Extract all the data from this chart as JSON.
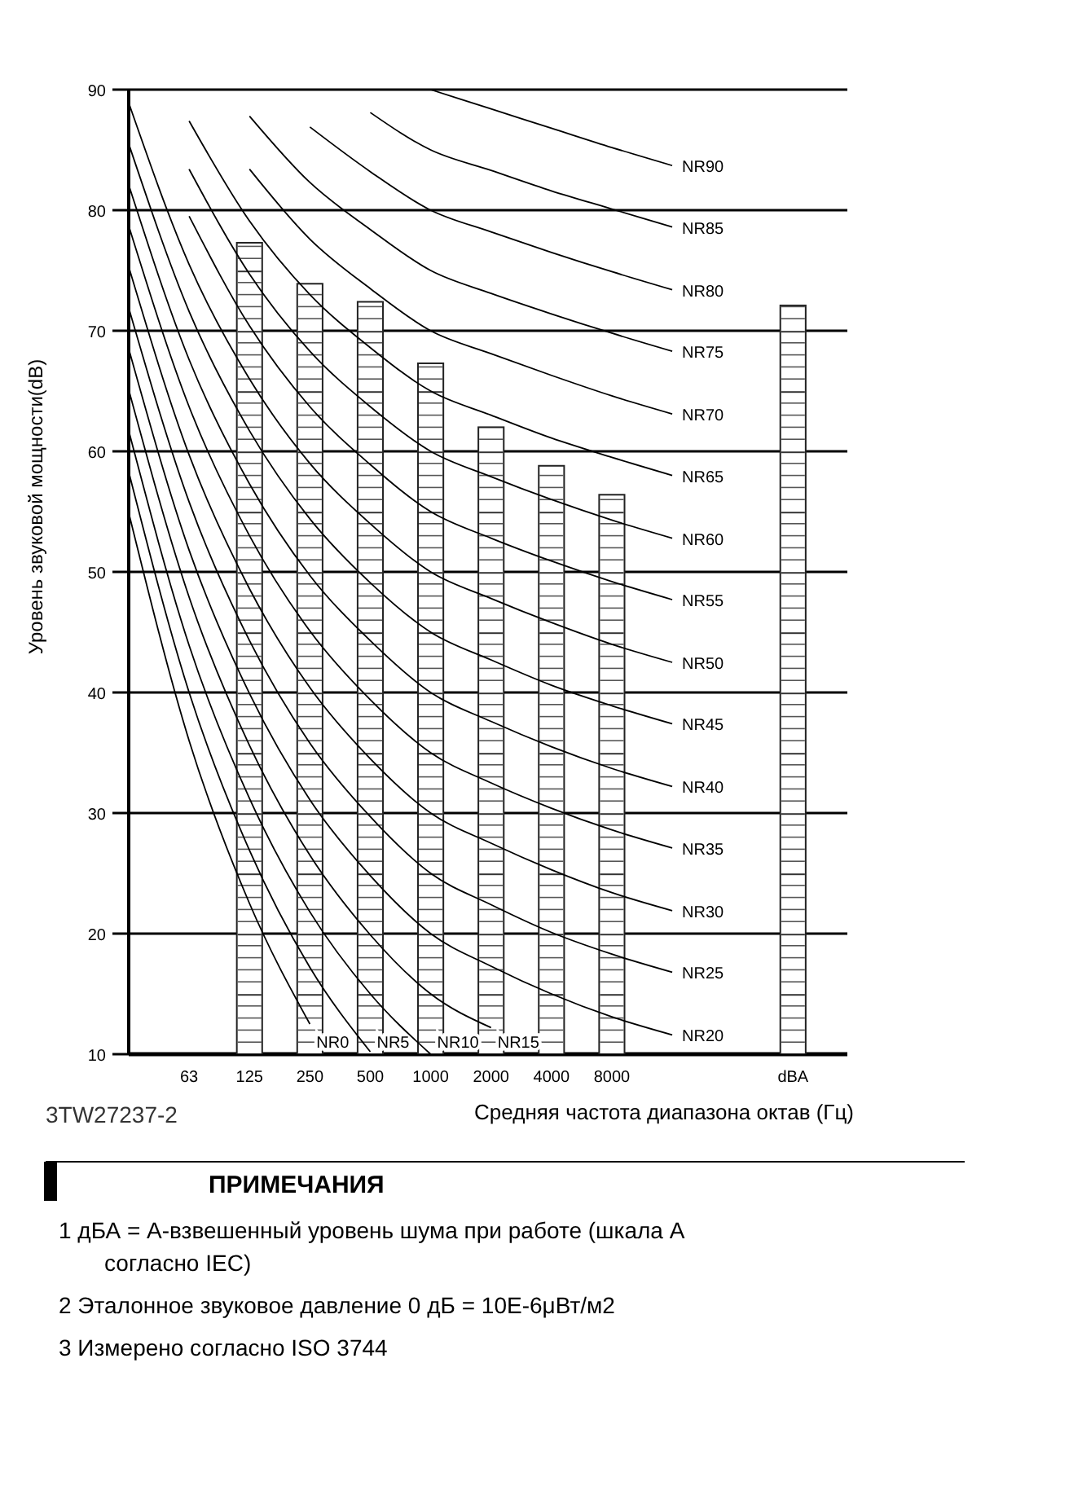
{
  "chart_data": {
    "type": "bar",
    "xlabel": "Средняя частота диапазона октав (Гц)",
    "ylabel": "Уровень звуковой мощности(dB)",
    "categories": [
      null,
      "63",
      "125",
      "250",
      "500",
      "1000",
      "2000",
      "4000",
      "8000",
      null,
      null,
      "dBA"
    ],
    "ylim": [
      10,
      90
    ],
    "yticks": [
      10,
      20,
      30,
      40,
      50,
      60,
      70,
      80,
      90
    ],
    "grid": "y",
    "legend": false,
    "marker": "none",
    "line_style": "solid",
    "series": [
      {
        "color": "#ffffff",
        "values": [
          null,
          null,
          77.3,
          73.9,
          72.4,
          67.3,
          62.0,
          58.8,
          56.4,
          null,
          null,
          72.1
        ]
      },
      {
        "type": "line",
        "name": "NR0",
        "color": "#000000",
        "values": [
          54.9,
          36.0,
          22.5,
          12.5,
          null,
          null,
          null,
          null,
          null,
          null,
          null,
          null
        ]
      },
      {
        "type": "line",
        "name": "NR5",
        "color": "#000000",
        "values": [
          58.3,
          40.0,
          26.9,
          17.2,
          10.2,
          null,
          null,
          null,
          null,
          null,
          null,
          null
        ]
      },
      {
        "type": "line",
        "name": "NR10",
        "color": "#000000",
        "values": [
          61.7,
          43.9,
          31.2,
          21.8,
          15.0,
          10.0,
          null,
          null,
          null,
          null,
          null,
          null
        ]
      },
      {
        "type": "line",
        "name": "NR15",
        "color": "#000000",
        "values": [
          65.1,
          47.9,
          35.6,
          26.5,
          19.9,
          15.0,
          12.2,
          null,
          null,
          null,
          null,
          null
        ]
      },
      {
        "type": "line",
        "name": "NR20",
        "color": "#000000",
        "values": [
          68.5,
          51.8,
          39.9,
          31.1,
          24.8,
          20.0,
          17.3,
          15.0,
          13.1,
          11.6,
          null,
          null
        ]
      },
      {
        "type": "line",
        "name": "NR25",
        "color": "#000000",
        "values": [
          71.9,
          55.8,
          44.3,
          35.8,
          29.7,
          25.0,
          22.4,
          20.1,
          18.3,
          16.8,
          null,
          null
        ]
      },
      {
        "type": "line",
        "name": "NR30",
        "color": "#000000",
        "values": [
          75.3,
          59.7,
          48.6,
          40.4,
          34.5,
          30.0,
          27.5,
          25.3,
          23.4,
          21.9,
          null,
          null
        ]
      },
      {
        "type": "line",
        "name": "NR35",
        "color": "#000000",
        "values": [
          78.7,
          63.7,
          53.0,
          45.1,
          39.4,
          35.0,
          32.5,
          30.4,
          28.6,
          27.1,
          null,
          null
        ]
      },
      {
        "type": "line",
        "name": "NR40",
        "color": "#000000",
        "values": [
          82.1,
          67.6,
          57.3,
          49.7,
          44.3,
          40.0,
          37.6,
          35.5,
          33.7,
          32.2,
          null,
          null
        ]
      },
      {
        "type": "line",
        "name": "NR45",
        "color": "#000000",
        "values": [
          85.5,
          71.6,
          61.7,
          54.4,
          49.1,
          45.0,
          42.7,
          40.6,
          38.9,
          37.4,
          null,
          null
        ]
      },
      {
        "type": "line",
        "name": "NR50",
        "color": "#000000",
        "values": [
          88.9,
          75.5,
          66.0,
          59.0,
          54.0,
          50.0,
          47.8,
          45.8,
          44.0,
          42.5,
          null,
          null
        ]
      },
      {
        "type": "line",
        "name": "NR55",
        "color": "#000000",
        "values": [
          null,
          79.5,
          70.4,
          63.7,
          58.9,
          55.0,
          52.8,
          50.9,
          49.2,
          47.7,
          null,
          null
        ]
      },
      {
        "type": "line",
        "name": "NR60",
        "color": "#000000",
        "values": [
          null,
          83.4,
          74.7,
          68.3,
          63.7,
          60.0,
          57.9,
          56.0,
          54.3,
          52.8,
          null,
          null
        ]
      },
      {
        "type": "line",
        "name": "NR65",
        "color": "#000000",
        "values": [
          null,
          87.4,
          79.1,
          73.0,
          68.6,
          65.0,
          63.0,
          61.1,
          59.5,
          58.0,
          null,
          null
        ]
      },
      {
        "type": "line",
        "name": "NR70",
        "color": "#000000",
        "values": [
          null,
          null,
          83.4,
          77.6,
          73.5,
          70.0,
          68.1,
          66.3,
          64.6,
          63.1,
          null,
          null
        ]
      },
      {
        "type": "line",
        "name": "NR75",
        "color": "#000000",
        "values": [
          null,
          null,
          87.8,
          82.3,
          78.4,
          75.0,
          73.1,
          71.4,
          69.8,
          68.3,
          null,
          null
        ]
      },
      {
        "type": "line",
        "name": "NR80",
        "color": "#000000",
        "values": [
          null,
          null,
          null,
          86.9,
          83.2,
          80.0,
          78.2,
          76.5,
          74.9,
          73.4,
          null,
          null
        ]
      },
      {
        "type": "line",
        "name": "NR85",
        "color": "#000000",
        "values": [
          null,
          null,
          null,
          null,
          88.1,
          85.0,
          83.3,
          81.6,
          80.1,
          78.6,
          null,
          null
        ]
      },
      {
        "type": "line",
        "name": "NR90",
        "color": "#000000",
        "values": [
          null,
          null,
          null,
          null,
          null,
          90.0,
          88.4,
          86.8,
          85.2,
          83.7,
          null,
          null
        ]
      }
    ],
    "annotations": [
      "3TW27237-2",
      "ПРИМЕЧАНИЯ",
      "1 дБА = А-взвешенный уровень шума при работе (шкала А согласно IEC)",
      "2 Эталонное звуковое давление 0 дБ = 10E-6μВт/м2",
      "3 Измерено согласно ISO 3744"
    ]
  }
}
